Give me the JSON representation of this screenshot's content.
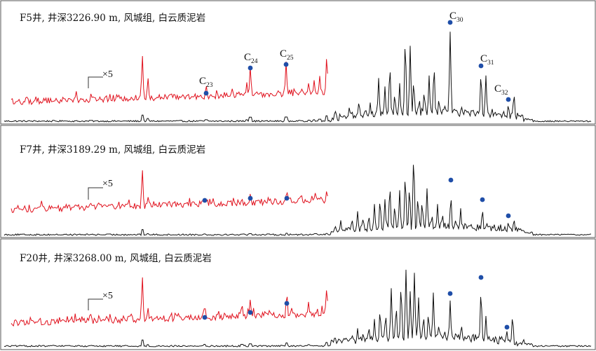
{
  "chart_data": {
    "type": "line",
    "description_of_series": "Black: full m/z 191 mass chromatogram; red: early-eluting section magnified x5",
    "colors": {
      "trace": "#111111",
      "magnified": "#e0101c",
      "marker": "#1f4ea8",
      "frame": "#555555"
    },
    "panels": [
      {
        "title": "F5井, 井深3226.90 m, 风城组, 白云质泥岩",
        "scale": "×5",
        "markers": [
          {
            "label": "C",
            "sub": "23"
          },
          {
            "label": "C",
            "sub": "24"
          },
          {
            "label": "C",
            "sub": "25"
          },
          {
            "label": "C",
            "sub": "30"
          },
          {
            "label": "C",
            "sub": "31"
          },
          {
            "label": "C",
            "sub": "32"
          }
        ]
      },
      {
        "title": "F7井, 井深3189.29 m, 风城组, 白云质泥岩",
        "scale": "×5",
        "markers": [
          {
            "label": "",
            "sub": ""
          },
          {
            "label": "",
            "sub": ""
          },
          {
            "label": "",
            "sub": ""
          },
          {
            "label": "",
            "sub": ""
          },
          {
            "label": "",
            "sub": ""
          },
          {
            "label": "",
            "sub": ""
          }
        ]
      },
      {
        "title": "F20井, 井深3268.00 m, 风城组, 白云质泥岩",
        "scale": "×5",
        "markers": [
          {
            "label": "",
            "sub": ""
          },
          {
            "label": "",
            "sub": ""
          },
          {
            "label": "",
            "sub": ""
          },
          {
            "label": "",
            "sub": ""
          },
          {
            "label": "",
            "sub": ""
          },
          {
            "label": "",
            "sub": ""
          }
        ]
      }
    ]
  }
}
